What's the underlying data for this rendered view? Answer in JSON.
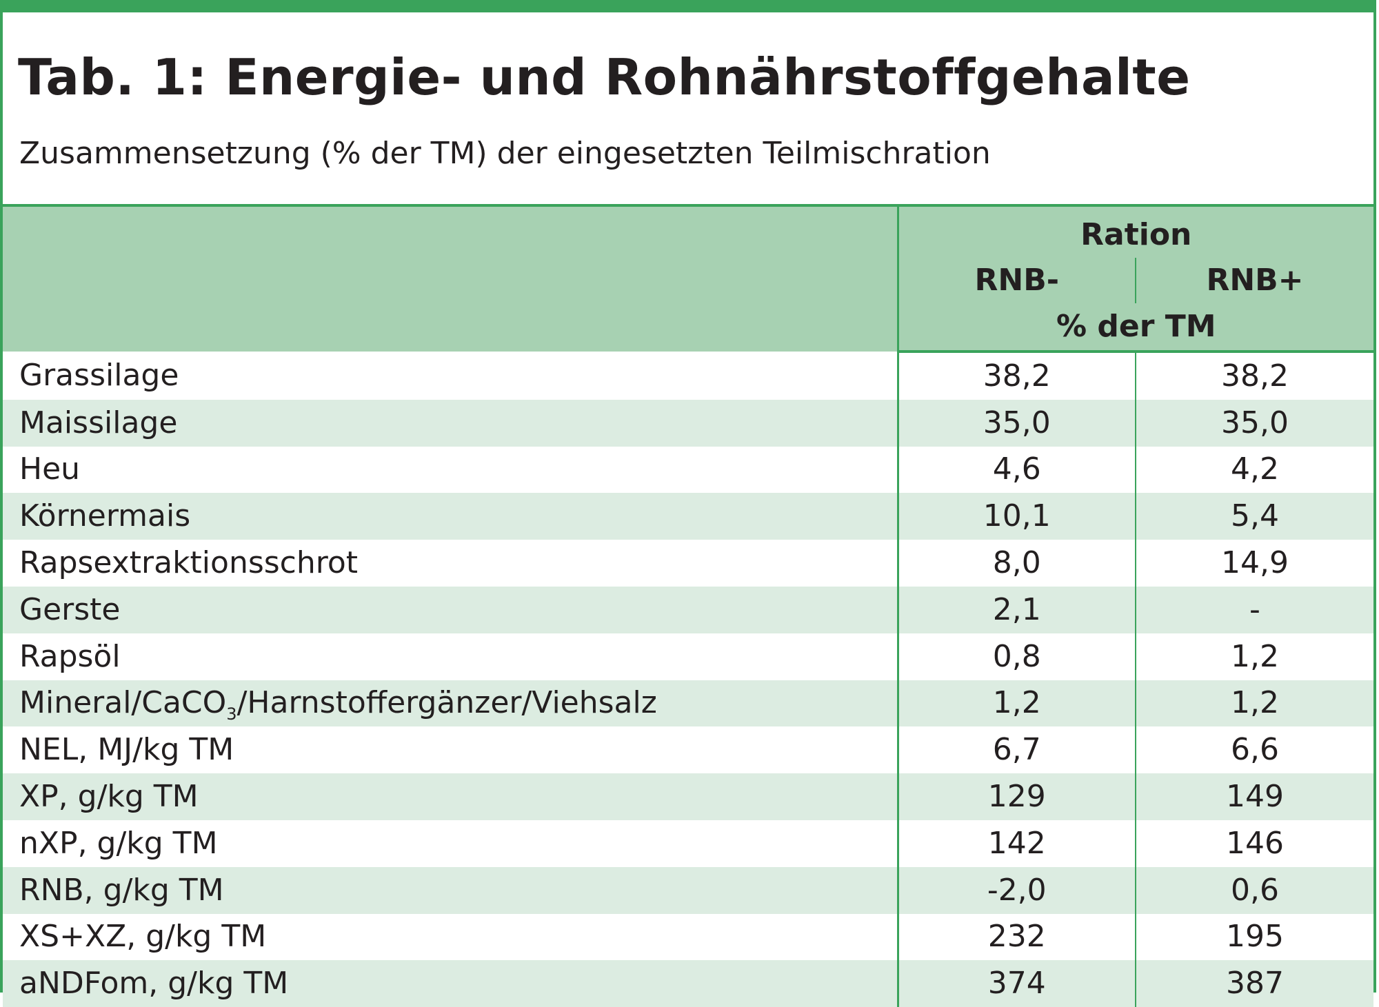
{
  "title": "Tab. 1: Energie- und Rohnährstoffgehalte",
  "subtitle": "Zusammensetzung (% der TM) der eingesetzten Teilmischration",
  "header": {
    "group_label": "Ration",
    "col_a": "RNB-",
    "col_b": "RNB+",
    "unit": "% der TM"
  },
  "rows": [
    {
      "label": "Grassilage",
      "a": "38,2",
      "b": "38,2"
    },
    {
      "label": "Maissilage",
      "a": "35,0",
      "b": "35,0"
    },
    {
      "label": "Heu",
      "a": "4,6",
      "b": "4,2"
    },
    {
      "label": "Körnermais",
      "a": "10,1",
      "b": "5,4"
    },
    {
      "label": "Rapsextraktionsschrot",
      "a": "8,0",
      "b": "14,9"
    },
    {
      "label": "Gerste",
      "a": "2,1",
      "b": "-"
    },
    {
      "label": "Rapsöl",
      "a": "0,8",
      "b": "1,2"
    },
    {
      "label_pre": "Mineral/CaCO",
      "label_sub": "3",
      "label_post": "/Harnstoffergänzer/Viehsalz",
      "a": "1,2",
      "b": "1,2"
    },
    {
      "label": "NEL, MJ/kg TM",
      "a": "6,7",
      "b": "6,6"
    },
    {
      "label": "XP, g/kg TM",
      "a": "129",
      "b": "149"
    },
    {
      "label": "nXP, g/kg TM",
      "a": "142",
      "b": "146"
    },
    {
      "label": "RNB, g/kg TM",
      "a": "-2,0",
      "b": "0,6"
    },
    {
      "label": "XS+XZ, g/kg TM",
      "a": "232",
      "b": "195"
    },
    {
      "label": "aNDFom, g/kg TM",
      "a": "374",
      "b": "387"
    }
  ],
  "colors": {
    "border": "#3aa35b",
    "header_bg": "#a7d1b2",
    "stripe_bg": "#dcece1"
  }
}
